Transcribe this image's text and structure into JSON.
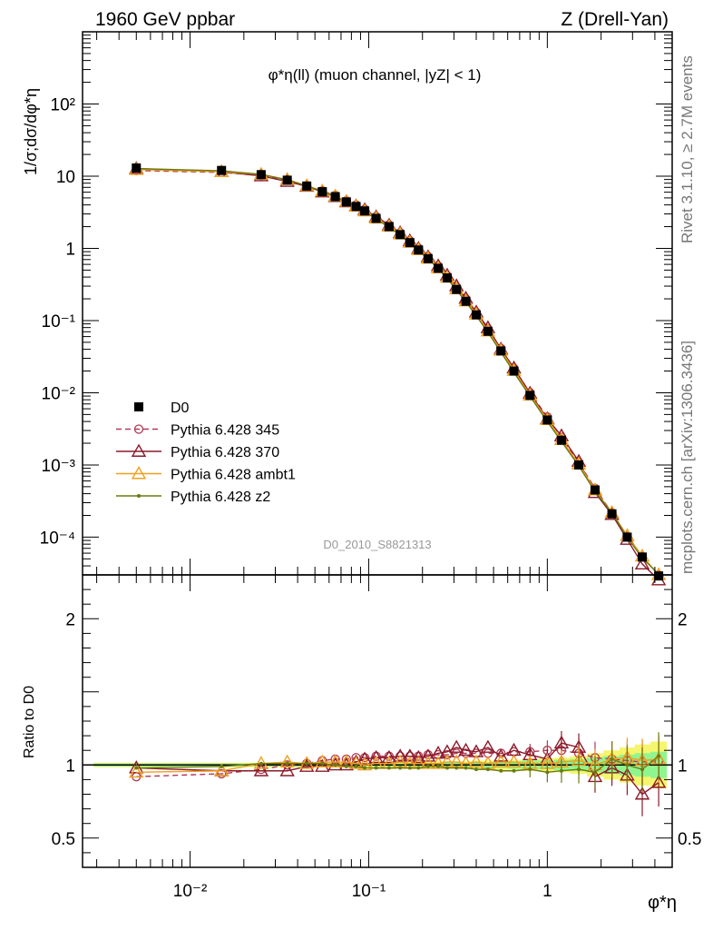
{
  "header": {
    "left": "1960 GeV ppbar",
    "right": "Z (Drell-Yan)"
  },
  "side_text": {
    "rivet": "Rivet 3.1.10, ≥ 2.7M events",
    "mcplots": "mcplots.cern.ch [arXiv:1306.3436]"
  },
  "chart_data": {
    "type": "line",
    "title": "φ*η(ll) (muon channel, |yZ| < 1)",
    "analysis_id": "D0_2010_S8821313",
    "xlabel": "φ*η",
    "ylabel": "1/σ;dσ/dφ*η",
    "ratio_ylabel": "Ratio to D0",
    "xscale": "log",
    "yscale": "log",
    "xlim": [
      0.0025,
      5.0
    ],
    "ylim": [
      3e-05,
      1000
    ],
    "ratio_ylim": [
      0.3,
      2.3
    ],
    "x_ticklabels": [
      "10⁻²",
      "10⁻¹",
      "1"
    ],
    "y_ticklabels": [
      "10⁻⁴",
      "10⁻³",
      "10⁻²",
      "10⁻¹",
      "1",
      "10",
      "10²"
    ],
    "ratio_ticklabels": [
      "0.5",
      "1",
      "2"
    ],
    "legend_position": "bottom-left",
    "x": [
      0.005,
      0.015,
      0.025,
      0.035,
      0.045,
      0.055,
      0.065,
      0.075,
      0.085,
      0.095,
      0.11,
      0.13,
      0.15,
      0.17,
      0.19,
      0.215,
      0.245,
      0.275,
      0.31,
      0.35,
      0.4,
      0.465,
      0.55,
      0.65,
      0.8,
      1.0,
      1.2,
      1.5,
      1.85,
      2.3,
      2.8,
      3.4,
      4.2
    ],
    "reference": {
      "name": "D0",
      "color": "#000000",
      "values": [
        13.0,
        12.0,
        10.5,
        8.8,
        7.3,
        6.1,
        5.2,
        4.4,
        3.8,
        3.3,
        2.6,
        2.0,
        1.55,
        1.2,
        0.95,
        0.72,
        0.53,
        0.39,
        0.27,
        0.185,
        0.12,
        0.071,
        0.038,
        0.02,
        0.0092,
        0.0042,
        0.0022,
        0.001,
        0.00045,
        0.00021,
        0.0001,
        5.3e-05,
        2.9e-05
      ],
      "unc_inner": [
        0.01,
        0.01,
        0.01,
        0.01,
        0.01,
        0.01,
        0.01,
        0.01,
        0.01,
        0.01,
        0.01,
        0.01,
        0.01,
        0.01,
        0.01,
        0.01,
        0.015,
        0.015,
        0.015,
        0.015,
        0.02,
        0.02,
        0.02,
        0.025,
        0.03,
        0.03,
        0.035,
        0.04,
        0.05,
        0.06,
        0.07,
        0.08,
        0.09
      ],
      "unc_outer": [
        0.015,
        0.015,
        0.015,
        0.015,
        0.015,
        0.015,
        0.015,
        0.015,
        0.015,
        0.015,
        0.02,
        0.02,
        0.02,
        0.02,
        0.02,
        0.02,
        0.025,
        0.025,
        0.025,
        0.025,
        0.03,
        0.03,
        0.035,
        0.035,
        0.04,
        0.045,
        0.05,
        0.06,
        0.08,
        0.1,
        0.12,
        0.14,
        0.16
      ]
    },
    "series": [
      {
        "name": "Pythia 6.428 345",
        "color": "#b03a55",
        "marker": "circle",
        "dash": "6,4",
        "ratio": [
          0.92,
          0.94,
          0.97,
          1.0,
          1.01,
          1.03,
          1.04,
          1.04,
          1.05,
          1.05,
          1.06,
          1.06,
          1.06,
          1.06,
          1.06,
          1.07,
          1.07,
          1.07,
          1.08,
          1.08,
          1.08,
          1.08,
          1.08,
          1.09,
          1.09,
          1.1,
          1.1,
          1.08,
          1.05,
          1.04,
          1.03,
          1.02,
          1.03
        ]
      },
      {
        "name": "Pythia 6.428 370",
        "color": "#8b1a2a",
        "marker": "triangle",
        "dash": "",
        "ratio": [
          0.98,
          0.96,
          0.96,
          0.96,
          0.99,
          0.99,
          1.0,
          1.0,
          1.02,
          1.04,
          1.05,
          1.05,
          1.06,
          1.06,
          1.05,
          1.06,
          1.08,
          1.09,
          1.12,
          1.1,
          1.09,
          1.12,
          1.06,
          1.1,
          1.07,
          1.04,
          1.15,
          1.12,
          0.92,
          0.98,
          0.93,
          0.8,
          0.88
        ]
      },
      {
        "name": "Pythia 6.428 ambt1",
        "color": "#f0a020",
        "marker": "triangle",
        "dash": "",
        "ratio": [
          0.95,
          0.96,
          1.01,
          1.02,
          1.01,
          1.02,
          1.02,
          1.02,
          1.01,
          1.0,
          1.01,
          1.01,
          1.02,
          1.01,
          1.01,
          1.01,
          1.01,
          1.02,
          1.02,
          1.01,
          1.02,
          1.01,
          1.02,
          1.02,
          1.01,
          1.01,
          1.02,
          1.03,
          1.0,
          1.04,
          1.05,
          1.03,
          1.04
        ]
      },
      {
        "name": "Pythia 6.428 z2",
        "color": "#6b7a10",
        "marker": "dot",
        "dash": "",
        "ratio": [
          0.98,
          0.99,
          1.01,
          1.01,
          1.01,
          1.01,
          1.0,
          0.99,
          0.99,
          0.98,
          0.98,
          0.98,
          0.98,
          0.98,
          0.98,
          0.99,
          0.99,
          0.98,
          0.98,
          0.98,
          0.97,
          0.97,
          0.96,
          0.96,
          0.97,
          0.95,
          0.96,
          0.97,
          0.95,
          1.04,
          1.0,
          0.97,
          1.06
        ]
      }
    ]
  }
}
